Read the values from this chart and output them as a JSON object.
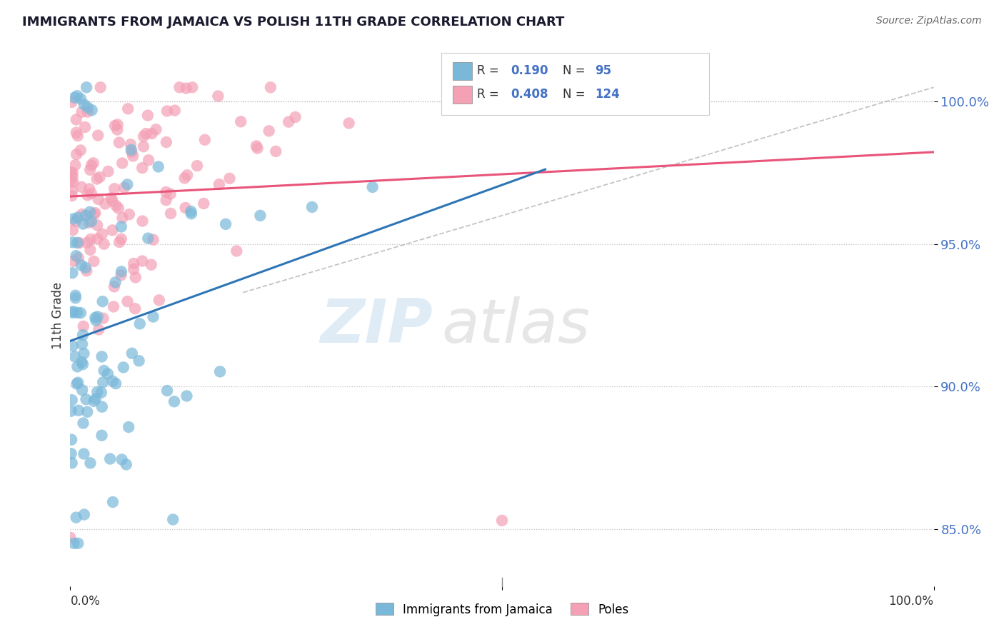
{
  "title": "IMMIGRANTS FROM JAMAICA VS POLISH 11TH GRADE CORRELATION CHART",
  "source": "Source: ZipAtlas.com",
  "ylabel": "11th Grade",
  "ytick_labels": [
    "85.0%",
    "90.0%",
    "95.0%",
    "100.0%"
  ],
  "ytick_values": [
    0.85,
    0.9,
    0.95,
    1.0
  ],
  "legend_label_blue": "Immigrants from Jamaica",
  "legend_label_pink": "Poles",
  "blue_color": "#7ab8d9",
  "pink_color": "#f4a0b5",
  "blue_line_color": "#2e75b6",
  "pink_line_color": "#e8547a",
  "dash_color": "#aaaaaa",
  "R_blue": 0.19,
  "N_blue": 95,
  "R_pink": 0.408,
  "N_pink": 124,
  "xlim": [
    0.0,
    1.0
  ],
  "ylim": [
    0.83,
    1.02
  ],
  "blue_line_x0": 0.0,
  "blue_line_y0": 0.915,
  "blue_line_x1": 0.55,
  "blue_line_y1": 0.955,
  "pink_line_x0": 0.0,
  "pink_line_y0": 0.945,
  "pink_line_x1": 1.0,
  "pink_line_y1": 1.005,
  "dash_line_x0": 0.2,
  "dash_line_y0": 0.933,
  "dash_line_x1": 1.0,
  "dash_line_y1": 1.005
}
